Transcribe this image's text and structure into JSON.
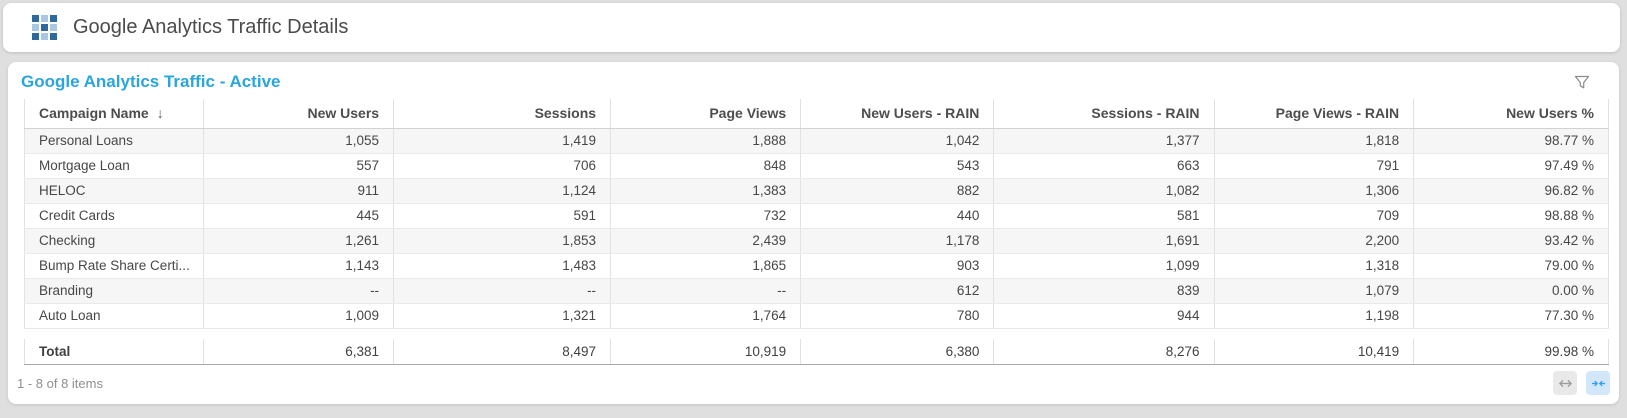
{
  "titlebar": {
    "title": "Google Analytics Traffic Details"
  },
  "panel": {
    "title": "Google Analytics Traffic - Active"
  },
  "table": {
    "columns": [
      {
        "label": "Campaign Name",
        "align": "left",
        "sort_arrow": "↓"
      },
      {
        "label": "New Users",
        "align": "right"
      },
      {
        "label": "Sessions",
        "align": "right"
      },
      {
        "label": "Page Views",
        "align": "right"
      },
      {
        "label": "New Users - RAIN",
        "align": "right"
      },
      {
        "label": "Sessions - RAIN",
        "align": "right"
      },
      {
        "label": "Page Views - RAIN",
        "align": "right"
      },
      {
        "label": "New Users %",
        "align": "right"
      }
    ],
    "rows": [
      [
        "Personal Loans",
        "1,055",
        "1,419",
        "1,888",
        "1,042",
        "1,377",
        "1,818",
        "98.77 %"
      ],
      [
        "Mortgage Loan",
        "557",
        "706",
        "848",
        "543",
        "663",
        "791",
        "97.49 %"
      ],
      [
        "HELOC",
        "911",
        "1,124",
        "1,383",
        "882",
        "1,082",
        "1,306",
        "96.82 %"
      ],
      [
        "Credit Cards",
        "445",
        "591",
        "732",
        "440",
        "581",
        "709",
        "98.88 %"
      ],
      [
        "Checking",
        "1,261",
        "1,853",
        "2,439",
        "1,178",
        "1,691",
        "2,200",
        "93.42 %"
      ],
      [
        "Bump Rate Share Certi...",
        "1,143",
        "1,483",
        "1,865",
        "903",
        "1,099",
        "1,318",
        "79.00 %"
      ],
      [
        "Branding",
        "--",
        "--",
        "--",
        "612",
        "839",
        "1,079",
        "0.00 %"
      ],
      [
        "Auto Loan",
        "1,009",
        "1,321",
        "1,764",
        "780",
        "944",
        "1,198",
        "77.30 %"
      ]
    ],
    "total_row": [
      "Total",
      "6,381",
      "8,497",
      "10,919",
      "6,380",
      "8,276",
      "10,419",
      "99.98 %"
    ]
  },
  "footer": {
    "items_text": "1 - 8 of 8 items"
  },
  "icons": {
    "titlebar_icon": "grid-icon",
    "panel_filter": "filter-funnel-icon",
    "footer_expand": "expand-columns-icon",
    "footer_collapse": "collapse-columns-icon"
  },
  "colors": {
    "panel_title": "#2aa5dd",
    "grid_icon_dark": "#30689e",
    "grid_icon_light": "#a9c6e2",
    "collapse_button_accent": "#2f9ff2",
    "scrollbar_thumb": "#b3b6b6"
  }
}
